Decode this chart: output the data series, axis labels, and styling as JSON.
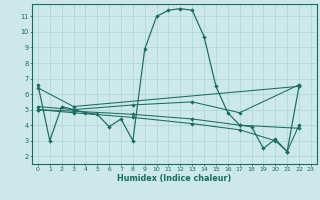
{
  "xlabel": "Humidex (Indice chaleur)",
  "bg_color": "#cce8e8",
  "grid_color": "#b0d8d8",
  "line_color": "#1a6b60",
  "xlim": [
    -0.5,
    23.5
  ],
  "ylim": [
    1.5,
    11.8
  ],
  "xticks": [
    0,
    1,
    2,
    3,
    4,
    5,
    6,
    7,
    8,
    9,
    10,
    11,
    12,
    13,
    14,
    15,
    16,
    17,
    18,
    19,
    20,
    21,
    22,
    23
  ],
  "yticks": [
    2,
    3,
    4,
    5,
    6,
    7,
    8,
    9,
    10,
    11
  ],
  "series1": [
    [
      0,
      6.6
    ],
    [
      1,
      3.0
    ],
    [
      2,
      5.2
    ],
    [
      3,
      5.0
    ],
    [
      4,
      4.8
    ],
    [
      5,
      4.7
    ],
    [
      6,
      3.9
    ],
    [
      7,
      4.4
    ],
    [
      8,
      3.0
    ],
    [
      9,
      8.9
    ],
    [
      10,
      11.0
    ],
    [
      11,
      11.4
    ],
    [
      12,
      11.5
    ],
    [
      13,
      11.4
    ],
    [
      14,
      9.7
    ],
    [
      15,
      6.5
    ],
    [
      16,
      4.8
    ],
    [
      17,
      4.0
    ],
    [
      18,
      3.9
    ],
    [
      19,
      2.5
    ],
    [
      20,
      3.1
    ],
    [
      21,
      2.3
    ],
    [
      22,
      6.5
    ]
  ],
  "series2": [
    [
      0,
      6.4
    ],
    [
      3,
      5.2
    ],
    [
      22,
      6.5
    ]
  ],
  "series3": [
    [
      0,
      5.2
    ],
    [
      3,
      5.0
    ],
    [
      8,
      5.3
    ],
    [
      13,
      5.5
    ],
    [
      17,
      4.8
    ],
    [
      22,
      6.6
    ]
  ],
  "series4": [
    [
      0,
      5.0
    ],
    [
      3,
      4.9
    ],
    [
      8,
      4.7
    ],
    [
      13,
      4.4
    ],
    [
      17,
      4.0
    ],
    [
      22,
      3.8
    ]
  ],
  "series5": [
    [
      0,
      5.0
    ],
    [
      3,
      4.8
    ],
    [
      8,
      4.5
    ],
    [
      13,
      4.1
    ],
    [
      17,
      3.7
    ],
    [
      20,
      3.0
    ],
    [
      21,
      2.3
    ],
    [
      22,
      4.0
    ]
  ]
}
